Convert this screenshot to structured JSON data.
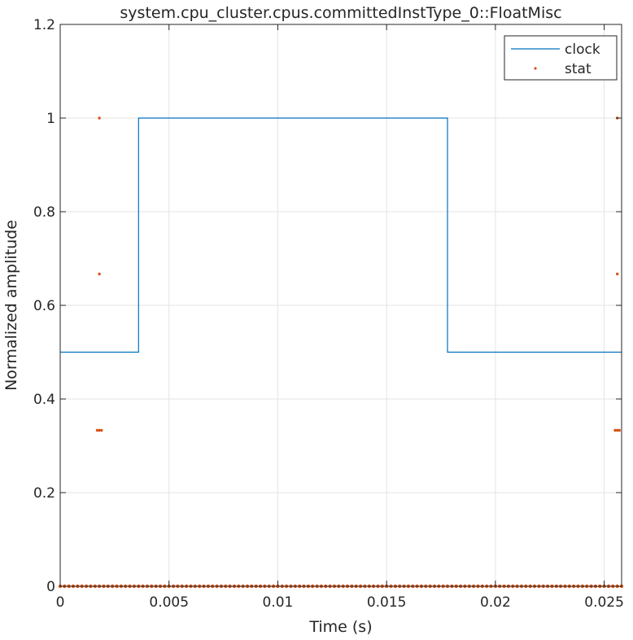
{
  "chart_data": {
    "type": "line",
    "title": "system.cpu_cluster.cpus.committedInstType_0::FloatMisc",
    "xlabel": "Time (s)",
    "ylabel": "Normalized amplitude",
    "xlim": [
      0,
      0.0258
    ],
    "ylim": [
      0,
      1.2
    ],
    "grid": true,
    "legend": {
      "position": "top-right",
      "entries": [
        "clock",
        "stat"
      ]
    },
    "x_ticks": [
      {
        "value": 0,
        "label": "0"
      },
      {
        "value": 0.005,
        "label": "0.005"
      },
      {
        "value": 0.01,
        "label": "0.01"
      },
      {
        "value": 0.015,
        "label": "0.015"
      },
      {
        "value": 0.02,
        "label": "0.02"
      },
      {
        "value": 0.025,
        "label": "0.025"
      }
    ],
    "y_ticks": [
      {
        "value": 0,
        "label": "0"
      },
      {
        "value": 0.2,
        "label": "0.2"
      },
      {
        "value": 0.4,
        "label": "0.4"
      },
      {
        "value": 0.6,
        "label": "0.6"
      },
      {
        "value": 0.8,
        "label": "0.8"
      },
      {
        "value": 1,
        "label": "1"
      },
      {
        "value": 1.2,
        "label": "1.2"
      }
    ],
    "series": [
      {
        "name": "clock",
        "style": "step",
        "color": "#0072BD",
        "x": [
          0,
          0.0036,
          0.0036,
          0.0178,
          0.0178,
          0.0258
        ],
        "y": [
          0.5,
          0.5,
          1.0,
          1.0,
          0.5,
          0.5
        ]
      },
      {
        "name": "stat",
        "style": "points",
        "color": "#D95319",
        "points": [
          {
            "x": 0.0018,
            "y": 1.0
          },
          {
            "x": 0.0018,
            "y": 0.667
          },
          {
            "x": 0.0017,
            "y": 0.333
          },
          {
            "x": 0.0018,
            "y": 0.333
          },
          {
            "x": 0.0019,
            "y": 0.333
          },
          {
            "x": 0.0256,
            "y": 1.0
          },
          {
            "x": 0.0256,
            "y": 0.667
          },
          {
            "x": 0.0255,
            "y": 0.333
          },
          {
            "x": 0.0256,
            "y": 0.333
          },
          {
            "x": 0.0257,
            "y": 0.333
          }
        ],
        "baseline": {
          "y": 0,
          "x_start": 0,
          "x_end": 0.0258,
          "count": 130
        }
      }
    ]
  }
}
